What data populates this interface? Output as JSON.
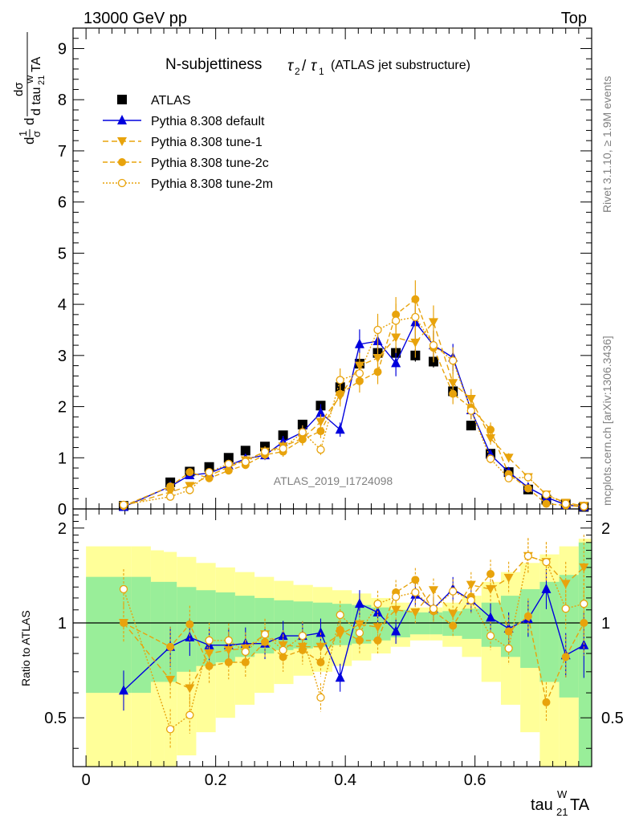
{
  "header": {
    "energy": "13000 GeV pp",
    "process": "Top"
  },
  "side": {
    "rivet": "Rivet 3.1.10, ≥ 1.9M events",
    "mcplots": "mcplots.cern.ch [arXiv:1306.3436]"
  },
  "analysis_id": "ATLAS_2019_I1724098",
  "colors": {
    "default": "#0000dd",
    "tune": "#e8a30c",
    "band_inner": "#99ee99",
    "band_outer": "#ffff99"
  },
  "chart_data": [
    {
      "type": "line",
      "title": "N-subjettiness τ2/τ1 (ATLAS jet substructure)",
      "title_main": "N-subjettiness",
      "title_sub": "(ATLAS jet substructure)",
      "ylabel": "1/σ dσ/d tau21WTA",
      "xlabel": "tau21WTA",
      "xlim": [
        -0.02,
        0.78
      ],
      "ylim": [
        0,
        9.4
      ],
      "yticks": [
        0,
        1,
        2,
        3,
        4,
        5,
        6,
        7,
        8,
        9
      ],
      "xticks": [
        0,
        0.2,
        0.4,
        0.6
      ],
      "x": [
        0.058,
        0.13,
        0.16,
        0.19,
        0.22,
        0.246,
        0.276,
        0.304,
        0.334,
        0.362,
        0.392,
        0.422,
        0.45,
        0.478,
        0.508,
        0.536,
        0.566,
        0.594,
        0.624,
        0.652,
        0.682,
        0.71,
        0.74,
        0.768
      ],
      "series": [
        {
          "name": "ATLAS",
          "values": [
            0.06,
            0.52,
            0.73,
            0.82,
            1.0,
            1.14,
            1.22,
            1.44,
            1.65,
            2.02,
            2.38,
            2.84,
            3.05,
            3.05,
            3.0,
            2.88,
            2.3,
            1.63,
            1.08,
            0.72,
            0.38,
            0.18,
            0.09,
            0.04
          ]
        },
        {
          "name": "Pythia 8.308 default",
          "values": [
            0.04,
            0.44,
            0.66,
            0.7,
            0.85,
            0.98,
            1.05,
            1.31,
            1.5,
            1.88,
            1.55,
            3.22,
            3.28,
            2.85,
            3.65,
            3.2,
            2.96,
            1.93,
            1.06,
            0.72,
            0.42,
            0.23,
            0.08,
            0.04
          ]
        },
        {
          "name": "Pythia 8.308 tune-1",
          "values": [
            0.06,
            0.33,
            0.45,
            0.65,
            0.82,
            0.95,
            1.12,
            1.22,
            1.38,
            1.7,
            2.2,
            2.8,
            2.95,
            3.35,
            3.25,
            3.65,
            2.46,
            2.15,
            1.38,
            1.0,
            0.62,
            0.28,
            0.12,
            0.06
          ]
        },
        {
          "name": "Pythia 8.308 tune-2c",
          "values": [
            0.06,
            0.44,
            0.72,
            0.6,
            0.75,
            0.86,
            1.06,
            1.12,
            1.36,
            1.52,
            2.25,
            2.5,
            2.68,
            3.8,
            4.1,
            3.15,
            2.25,
            1.98,
            1.55,
            0.68,
            0.4,
            0.1,
            0.07,
            0.04
          ]
        },
        {
          "name": "Pythia 8.308 tune-2m",
          "values": [
            0.08,
            0.24,
            0.37,
            0.72,
            0.88,
            0.92,
            1.12,
            1.18,
            1.5,
            1.16,
            2.52,
            2.65,
            3.5,
            3.68,
            3.75,
            3.2,
            2.9,
            1.92,
            0.98,
            0.6,
            0.62,
            0.28,
            0.1,
            0.05
          ]
        }
      ]
    },
    {
      "type": "line",
      "ylabel": "Ratio to ATLAS",
      "ylim": [
        0.35,
        2.3
      ],
      "yticks": [
        0.5,
        1,
        2
      ],
      "band_edges": [
        0.0,
        0.07,
        0.1,
        0.12,
        0.14,
        0.17,
        0.2,
        0.23,
        0.26,
        0.29,
        0.32,
        0.35,
        0.38,
        0.41,
        0.44,
        0.47,
        0.5,
        0.53,
        0.55,
        0.58,
        0.61,
        0.64,
        0.67,
        0.7,
        0.73,
        0.76,
        0.78
      ],
      "band_inner": [
        0.4,
        0.4,
        0.35,
        0.35,
        0.3,
        0.27,
        0.25,
        0.22,
        0.2,
        0.18,
        0.17,
        0.16,
        0.15,
        0.14,
        0.12,
        0.1,
        0.08,
        0.08,
        0.09,
        0.11,
        0.16,
        0.22,
        0.28,
        0.35,
        0.42,
        0.8
      ],
      "band_outer": [
        0.75,
        0.75,
        0.7,
        0.68,
        0.62,
        0.55,
        0.5,
        0.45,
        0.4,
        0.36,
        0.32,
        0.3,
        0.27,
        0.24,
        0.2,
        0.16,
        0.12,
        0.12,
        0.16,
        0.22,
        0.35,
        0.45,
        0.55,
        0.65,
        0.75,
        0.85
      ],
      "series": [
        {
          "name": "Pythia 8.308 default",
          "values": [
            0.61,
            0.84,
            0.9,
            0.85,
            0.85,
            0.86,
            0.86,
            0.91,
            0.91,
            0.93,
            0.67,
            1.15,
            1.08,
            0.94,
            1.23,
            1.11,
            1.28,
            1.18,
            1.04,
            0.96,
            1.03,
            1.28,
            0.79,
            0.85
          ]
        },
        {
          "name": "Pythia 8.308 tune-1",
          "values": [
            1.0,
            0.66,
            0.62,
            0.8,
            0.82,
            0.83,
            0.92,
            0.85,
            0.84,
            0.84,
            0.92,
            0.99,
            0.97,
            1.1,
            1.08,
            1.27,
            1.07,
            1.32,
            1.28,
            1.39,
            1.63,
            1.56,
            1.33,
            1.5
          ]
        },
        {
          "name": "Pythia 8.308 tune-2c",
          "values": [
            1.0,
            0.84,
            0.99,
            0.73,
            0.75,
            0.75,
            0.87,
            0.78,
            0.82,
            0.75,
            0.95,
            0.88,
            0.88,
            1.25,
            1.37,
            1.09,
            0.98,
            1.21,
            1.43,
            0.94,
            1.05,
            0.56,
            0.78,
            1.0
          ]
        },
        {
          "name": "Pythia 8.308 tune-2m",
          "values": [
            1.28,
            0.46,
            0.51,
            0.88,
            0.88,
            0.81,
            0.92,
            0.82,
            0.91,
            0.58,
            1.06,
            0.93,
            1.15,
            1.21,
            1.25,
            1.11,
            1.26,
            1.18,
            0.91,
            0.83,
            1.63,
            1.56,
            1.11,
            1.15
          ]
        }
      ]
    }
  ]
}
